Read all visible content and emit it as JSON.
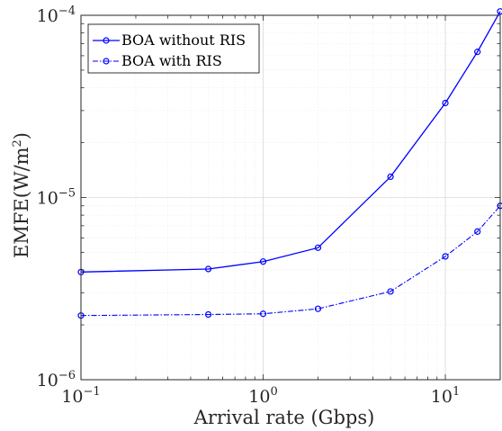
{
  "chart_data": {
    "type": "line",
    "x_scale": "log",
    "y_scale": "log",
    "xlabel": "Arrival rate (Gbps)",
    "ylabel": "EMFE(W/m²)",
    "ylabel_parts": {
      "base": "EMFE(W/m",
      "sup": "2",
      "end": ")"
    },
    "xlim": [
      0.1,
      20
    ],
    "ylim": [
      1e-06,
      0.0001
    ],
    "x_ticks": [
      {
        "value": 0.1,
        "base": "10",
        "exp": "−1"
      },
      {
        "value": 1,
        "base": "10",
        "exp": "0"
      },
      {
        "value": 10,
        "base": "10",
        "exp": "1"
      }
    ],
    "y_ticks": [
      {
        "value": 1e-06,
        "base": "10",
        "exp": "−6"
      },
      {
        "value": 1e-05,
        "base": "10",
        "exp": "−5"
      },
      {
        "value": 0.0001,
        "base": "10",
        "exp": "−4"
      }
    ],
    "grid": true,
    "minor_grid": true,
    "legend_position": "top-left",
    "line_color": "#0000ff",
    "series": [
      {
        "name": "BOA without RIS",
        "style": "solid",
        "x": [
          0.1,
          0.5,
          1,
          2,
          5,
          10,
          15,
          20
        ],
        "y": [
          3.9e-06,
          4.05e-06,
          4.45e-06,
          5.3e-06,
          1.3e-05,
          3.3e-05,
          6.3e-05,
          0.000105
        ]
      },
      {
        "name": "BOA with RIS",
        "style": "dashdot",
        "x": [
          0.1,
          0.5,
          1,
          2,
          5,
          10,
          15,
          20
        ],
        "y": [
          2.25e-06,
          2.28e-06,
          2.3e-06,
          2.45e-06,
          3.05e-06,
          4.75e-06,
          6.5e-06,
          9e-06
        ]
      }
    ]
  }
}
